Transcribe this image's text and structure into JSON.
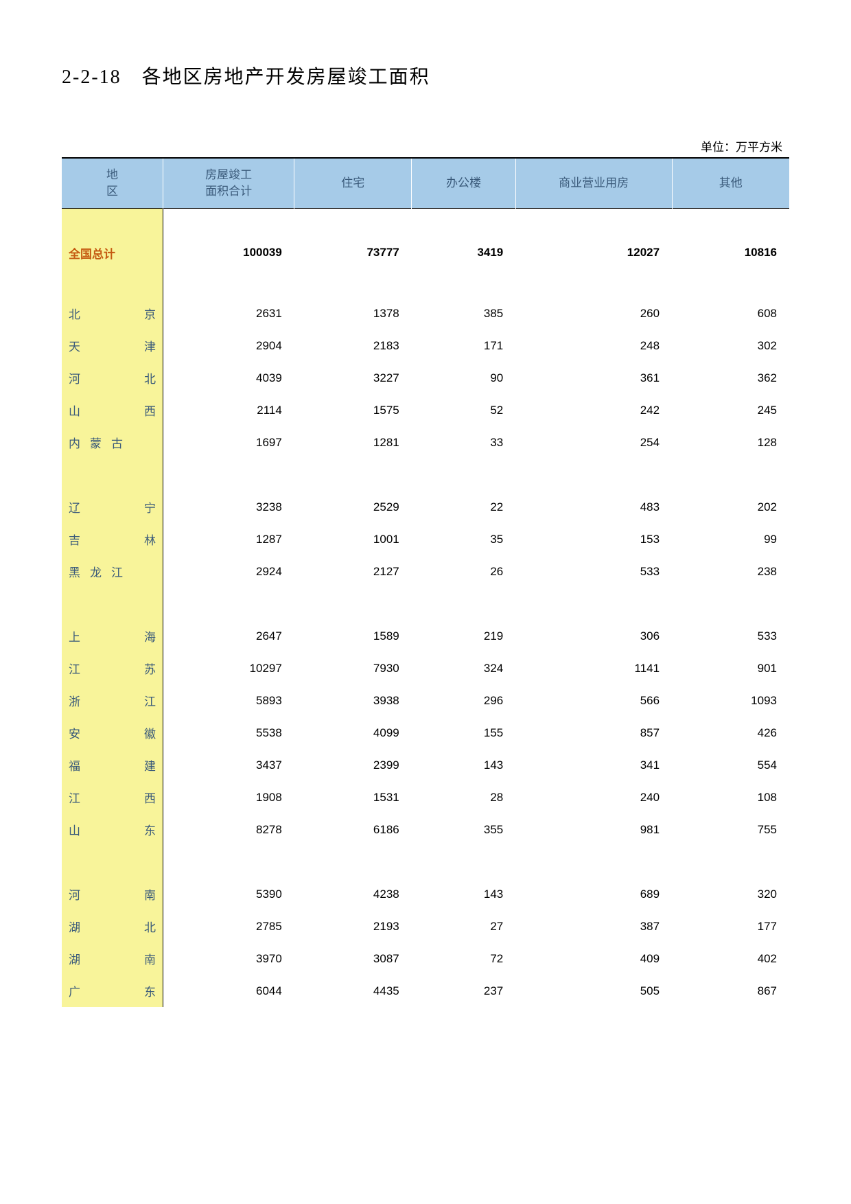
{
  "title": "2-2-18　各地区房地产开发房屋竣工面积",
  "unit_label": "单位：万平方米",
  "header": {
    "region": "地　　区",
    "total_area": "房屋竣工\n面积合计",
    "residential": "住宅",
    "office": "办公楼",
    "commercial": "商业营业用房",
    "other": "其他"
  },
  "colors": {
    "header_bg": "#a6cbe8",
    "header_fg": "#3a5a7a",
    "region_bg": "#f8f49a",
    "region_fg": "#3a5a7a",
    "total_fg": "#c55a11",
    "border": "#000000",
    "page_bg": "#ffffff"
  },
  "total_row": {
    "label": "全国总计",
    "total": "100039",
    "residential": "73777",
    "office": "3419",
    "commercial": "12027",
    "other": "10816"
  },
  "groups": [
    [
      {
        "region": "北京",
        "total": "2631",
        "residential": "1378",
        "office": "385",
        "commercial": "260",
        "other": "608"
      },
      {
        "region": "天津",
        "total": "2904",
        "residential": "2183",
        "office": "171",
        "commercial": "248",
        "other": "302"
      },
      {
        "region": "河北",
        "total": "4039",
        "residential": "3227",
        "office": "90",
        "commercial": "361",
        "other": "362"
      },
      {
        "region": "山西",
        "total": "2114",
        "residential": "1575",
        "office": "52",
        "commercial": "242",
        "other": "245"
      },
      {
        "region": "内蒙古",
        "total": "1697",
        "residential": "1281",
        "office": "33",
        "commercial": "254",
        "other": "128"
      }
    ],
    [
      {
        "region": "辽宁",
        "total": "3238",
        "residential": "2529",
        "office": "22",
        "commercial": "483",
        "other": "202"
      },
      {
        "region": "吉林",
        "total": "1287",
        "residential": "1001",
        "office": "35",
        "commercial": "153",
        "other": "99"
      },
      {
        "region": "黑龙江",
        "total": "2924",
        "residential": "2127",
        "office": "26",
        "commercial": "533",
        "other": "238"
      }
    ],
    [
      {
        "region": "上海",
        "total": "2647",
        "residential": "1589",
        "office": "219",
        "commercial": "306",
        "other": "533"
      },
      {
        "region": "江苏",
        "total": "10297",
        "residential": "7930",
        "office": "324",
        "commercial": "1141",
        "other": "901"
      },
      {
        "region": "浙江",
        "total": "5893",
        "residential": "3938",
        "office": "296",
        "commercial": "566",
        "other": "1093"
      },
      {
        "region": "安徽",
        "total": "5538",
        "residential": "4099",
        "office": "155",
        "commercial": "857",
        "other": "426"
      },
      {
        "region": "福建",
        "total": "3437",
        "residential": "2399",
        "office": "143",
        "commercial": "341",
        "other": "554"
      },
      {
        "region": "江西",
        "total": "1908",
        "residential": "1531",
        "office": "28",
        "commercial": "240",
        "other": "108"
      },
      {
        "region": "山东",
        "total": "8278",
        "residential": "6186",
        "office": "355",
        "commercial": "981",
        "other": "755"
      }
    ],
    [
      {
        "region": "河南",
        "total": "5390",
        "residential": "4238",
        "office": "143",
        "commercial": "689",
        "other": "320"
      },
      {
        "region": "湖北",
        "total": "2785",
        "residential": "2193",
        "office": "27",
        "commercial": "387",
        "other": "177"
      },
      {
        "region": "湖南",
        "total": "3970",
        "residential": "3087",
        "office": "72",
        "commercial": "409",
        "other": "402"
      },
      {
        "region": "广东",
        "total": "6044",
        "residential": "4435",
        "office": "237",
        "commercial": "505",
        "other": "867"
      }
    ]
  ]
}
